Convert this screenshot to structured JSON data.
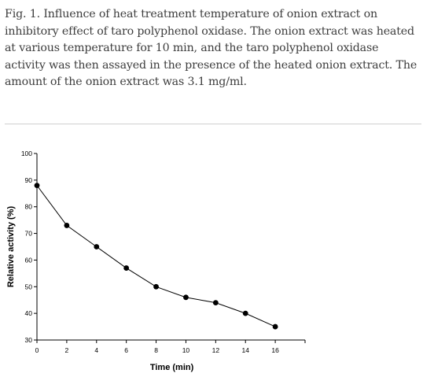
{
  "caption": "Fig. 1. Influence of heat treatment temperature of onion extract on inhibitory effect of taro polyphenol oxidase. The onion extract was heated at various temperature for 10 min, and the taro polyphenol oxidase activity was then assayed in the presence of the heated onion extract. The amount of the onion extract was 3.1 mg/ml.",
  "chart_data": {
    "type": "line",
    "xlabel": "Time (min)",
    "ylabel": "Relative activity (%)",
    "xlim": [
      0,
      18
    ],
    "ylim": [
      30,
      100
    ],
    "x_ticks": [
      0,
      2,
      4,
      6,
      8,
      10,
      12,
      14,
      16
    ],
    "y_ticks": [
      30,
      40,
      50,
      60,
      70,
      80,
      90,
      100
    ],
    "grid": false,
    "series": [
      {
        "x": [
          0,
          2,
          4,
          6,
          8,
          10,
          12,
          14,
          16
        ],
        "values": [
          88,
          73,
          65,
          57,
          50,
          46,
          44,
          40,
          35
        ]
      }
    ],
    "colors": {
      "line": "#000000",
      "marker": "#000000"
    }
  }
}
